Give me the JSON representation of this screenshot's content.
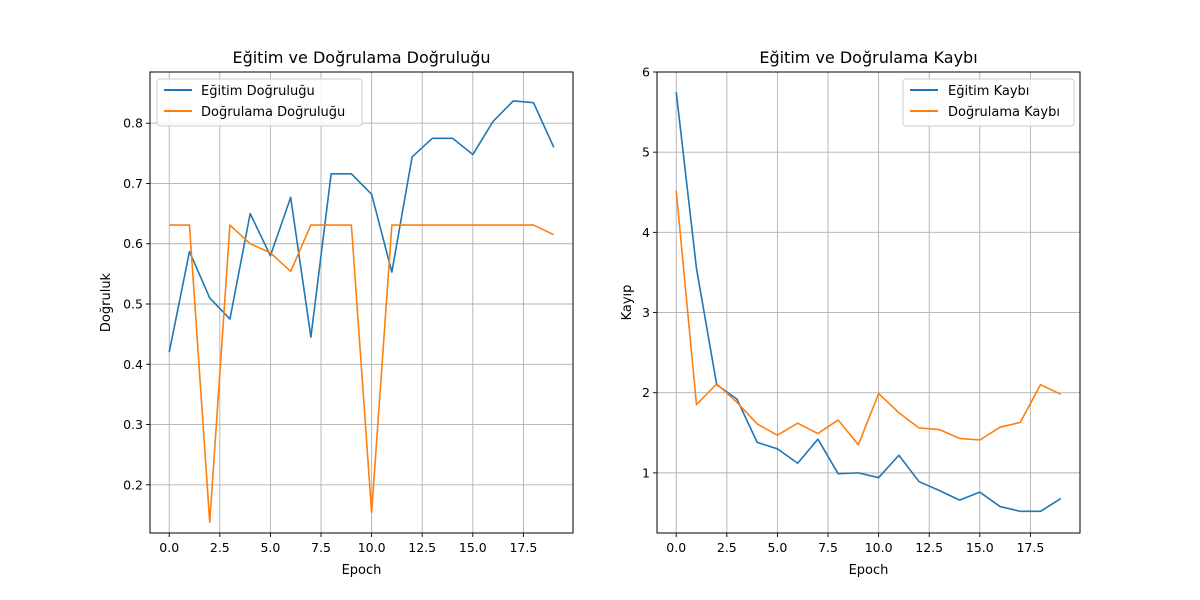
{
  "colors": {
    "train": "#1f77b4",
    "val": "#ff7f0e"
  },
  "chart_data": [
    {
      "type": "line",
      "title": "Eğitim ve Doğrulama Doğruluğu",
      "xlabel": "Epoch",
      "ylabel": "Doğruluk",
      "xlim": [
        -0.95,
        19.95
      ],
      "ylim": [
        0.12,
        0.885
      ],
      "x_ticks": [
        0,
        2.5,
        5,
        7.5,
        10,
        12.5,
        15,
        17.5
      ],
      "x_tick_labels": [
        "0.0",
        "2.5",
        "5.0",
        "7.5",
        "10.0",
        "12.5",
        "15.0",
        "17.5"
      ],
      "y_ticks": [
        0.2,
        0.3,
        0.4,
        0.5,
        0.6,
        0.7,
        0.8
      ],
      "y_tick_labels": [
        "0.2",
        "0.3",
        "0.4",
        "0.5",
        "0.6",
        "0.7",
        "0.8"
      ],
      "grid": true,
      "legend_position": "upper-left",
      "x": [
        0,
        1,
        2,
        3,
        4,
        5,
        6,
        7,
        8,
        9,
        10,
        11,
        12,
        13,
        14,
        15,
        16,
        17,
        18,
        19
      ],
      "series": [
        {
          "name": "Eğitim Doğruluğu",
          "color_key": "train",
          "values": [
            0.42,
            0.587,
            0.51,
            0.475,
            0.65,
            0.58,
            0.677,
            0.445,
            0.716,
            0.716,
            0.682,
            0.553,
            0.744,
            0.775,
            0.775,
            0.748,
            0.803,
            0.837,
            0.834,
            0.76
          ]
        },
        {
          "name": "Doğrulama Doğruluğu",
          "color_key": "val",
          "values": [
            0.631,
            0.631,
            0.138,
            0.631,
            0.6,
            0.585,
            0.554,
            0.631,
            0.631,
            0.631,
            0.154,
            0.631,
            0.631,
            0.631,
            0.631,
            0.631,
            0.631,
            0.631,
            0.631,
            0.615
          ]
        }
      ]
    },
    {
      "type": "line",
      "title": "Eğitim ve Doğrulama Kaybı",
      "xlabel": "Epoch",
      "ylabel": "Kayıp",
      "xlim": [
        -0.95,
        19.95
      ],
      "ylim": [
        0.25,
        6.0
      ],
      "x_ticks": [
        0,
        2.5,
        5,
        7.5,
        10,
        12.5,
        15,
        17.5
      ],
      "x_tick_labels": [
        "0.0",
        "2.5",
        "5.0",
        "7.5",
        "10.0",
        "12.5",
        "15.0",
        "17.5"
      ],
      "y_ticks": [
        1,
        2,
        3,
        4,
        5,
        6
      ],
      "y_tick_labels": [
        "1",
        "2",
        "3",
        "4",
        "5",
        "6"
      ],
      "grid": true,
      "legend_position": "upper-right",
      "x": [
        0,
        1,
        2,
        3,
        4,
        5,
        6,
        7,
        8,
        9,
        10,
        11,
        12,
        13,
        14,
        15,
        16,
        17,
        18,
        19
      ],
      "series": [
        {
          "name": "Eğitim Kaybı",
          "color_key": "train",
          "values": [
            5.75,
            3.55,
            2.1,
            1.92,
            1.38,
            1.3,
            1.12,
            1.42,
            0.99,
            1.0,
            0.94,
            1.22,
            0.89,
            0.78,
            0.66,
            0.76,
            0.58,
            0.52,
            0.52,
            0.68
          ]
        },
        {
          "name": "Doğrulama Kaybı",
          "color_key": "val",
          "values": [
            4.52,
            1.85,
            2.11,
            1.88,
            1.61,
            1.47,
            1.62,
            1.49,
            1.66,
            1.35,
            1.99,
            1.75,
            1.56,
            1.54,
            1.43,
            1.41,
            1.57,
            1.63,
            2.1,
            1.98
          ]
        }
      ]
    }
  ]
}
